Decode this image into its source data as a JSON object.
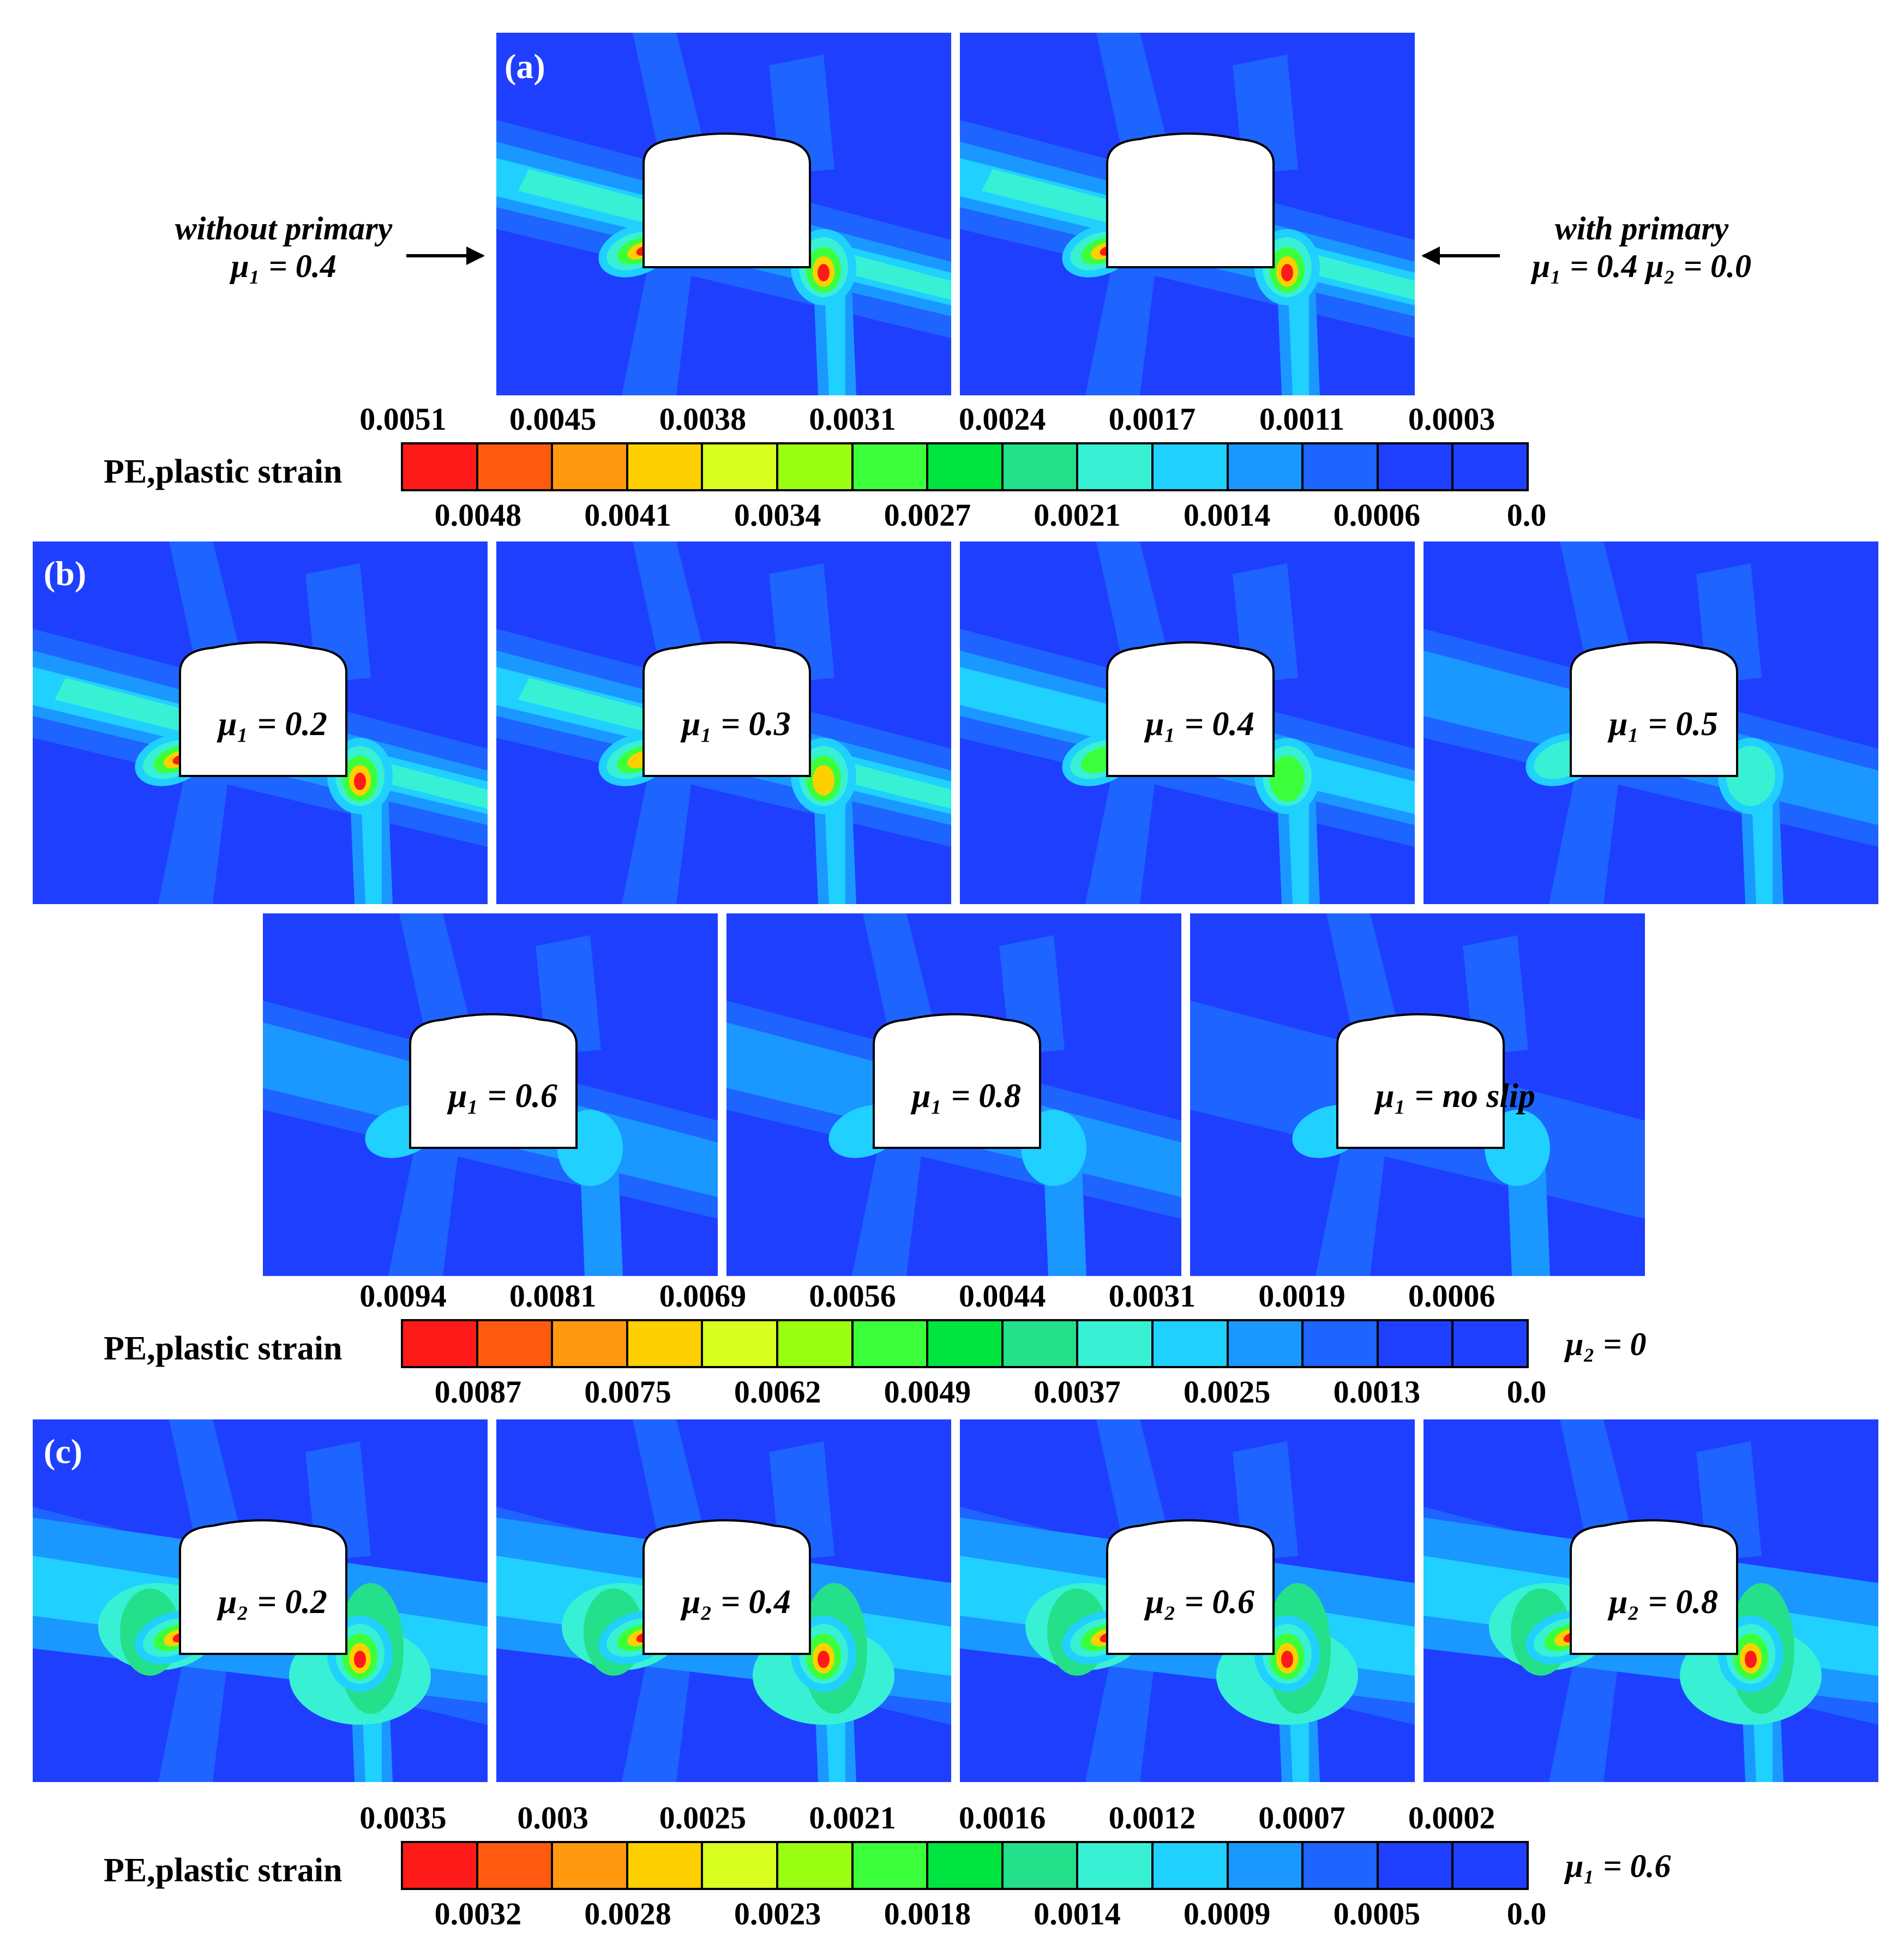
{
  "section_a": {
    "tag": "(a)",
    "panel_labels": [
      "",
      ""
    ],
    "left_annot": {
      "line1": "without primary",
      "line2": "μ₁ = 0.4"
    },
    "right_annot": {
      "line1": "with primary",
      "line2": "μ₁ = 0.4   μ₂ = 0.0"
    }
  },
  "legend_a": {
    "title": "PE,plastic strain",
    "top_ticks": [
      "0.0051",
      "0.0045",
      "0.0038",
      "0.0031",
      "0.0024",
      "0.0017",
      "0.0011",
      "0.0003"
    ],
    "bottom_ticks": [
      "0.0048",
      "0.0041",
      "0.0034",
      "0.0027",
      "0.0021",
      "0.0014",
      "0.0006",
      "0.0"
    ],
    "note": ""
  },
  "section_b": {
    "tag": "(b)",
    "panel_labels": [
      "μ₁ = 0.2",
      "μ₁ = 0.3",
      "μ₁ = 0.4",
      "μ₁ = 0.5",
      "μ₁ = 0.6",
      "μ₁ = 0.8",
      "μ₁ = no slip"
    ]
  },
  "legend_b": {
    "title": "PE,plastic strain",
    "top_ticks": [
      "0.0094",
      "0.0081",
      "0.0069",
      "0.0056",
      "0.0044",
      "0.0031",
      "0.0019",
      "0.0006"
    ],
    "bottom_ticks": [
      "0.0087",
      "0.0075",
      "0.0062",
      "0.0049",
      "0.0037",
      "0.0025",
      "0.0013",
      "0.0"
    ],
    "note": "μ₂ = 0"
  },
  "section_c": {
    "tag": "(c)",
    "panel_labels": [
      "μ₂ = 0.2",
      "μ₂ = 0.4",
      "μ₂ = 0.6",
      "μ₂ = 0.8"
    ]
  },
  "legend_c": {
    "title": "PE,plastic strain",
    "top_ticks": [
      "0.0035",
      "0.003",
      "0.0025",
      "0.0021",
      "0.0016",
      "0.0012",
      "0.0007",
      "0.0002"
    ],
    "bottom_ticks": [
      "0.0032",
      "0.0028",
      "0.0023",
      "0.0018",
      "0.0014",
      "0.0009",
      "0.0005",
      "0.0"
    ],
    "note": "μ₁ = 0.6"
  },
  "colors": {
    "scale": [
      "#ff0000",
      "#ff5a00",
      "#ff9900",
      "#ffd500",
      "#e6ff00",
      "#9cff00",
      "#4dff33",
      "#00ee22",
      "#00e070",
      "#2ee8c8",
      "#00ffe6",
      "#18c8ff",
      "#1a8cff",
      "#1f5cff",
      "#1f3fff"
    ],
    "segments": [
      "#ff1a1a",
      "#ff5a10",
      "#ff9a10",
      "#ffd000",
      "#d8ff20",
      "#9aff10",
      "#3cff3c",
      "#00e440",
      "#24e08a",
      "#38f0d4",
      "#20d0ff",
      "#1a98ff",
      "#1e64ff",
      "#1f3fff"
    ]
  }
}
